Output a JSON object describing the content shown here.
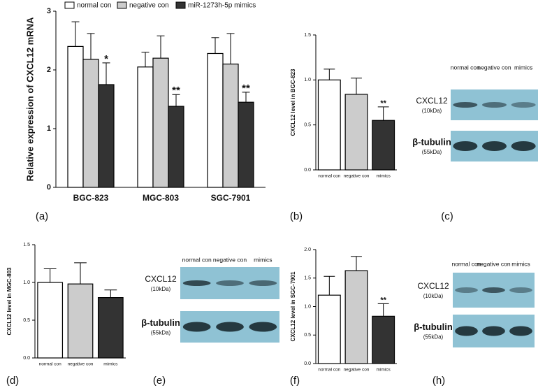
{
  "chart_data": [
    {
      "type": "grouped-bar",
      "panel": "(a)",
      "ylabel": "Relative expression of CXCL12 mRNA",
      "categories": [
        "BGC-823",
        "MGC-803",
        "SGC-7901"
      ],
      "series": [
        {
          "name": "normal con",
          "color": "#ffffff",
          "values": [
            2.4,
            2.05,
            2.28
          ],
          "errors": [
            0.42,
            0.25,
            0.27
          ]
        },
        {
          "name": "negative con",
          "color": "#cccccc",
          "values": [
            2.18,
            2.2,
            2.1
          ],
          "errors": [
            0.44,
            0.38,
            0.52
          ]
        },
        {
          "name": "miR-1273h-5p mimics",
          "color": "#333333",
          "values": [
            1.75,
            1.38,
            1.45
          ],
          "errors": [
            0.37,
            0.2,
            0.17
          ],
          "significance": [
            "*",
            "**",
            "**"
          ]
        }
      ],
      "ylim": [
        0,
        3
      ],
      "yticks": [
        0,
        1,
        2,
        3
      ]
    },
    {
      "type": "bar",
      "panel": "(b)",
      "ylabel": "CXCL12 level in BGC-823",
      "categories": [
        "normal con",
        "negative con",
        "mimics"
      ],
      "values": [
        1.0,
        0.84,
        0.55
      ],
      "errors": [
        0.12,
        0.18,
        0.15
      ],
      "colors": [
        "#ffffff",
        "#cccccc",
        "#333333"
      ],
      "significance": [
        null,
        null,
        "**"
      ],
      "ylim": [
        0,
        1.5
      ],
      "yticks": [
        {
          "value": 0,
          "label": "0.0"
        },
        0.5,
        {
          "value": 1,
          "label": "1.0"
        },
        1.5
      ]
    },
    {
      "type": "bar",
      "panel": "(d)",
      "ylabel": "CXCL12 level in MGC-803",
      "categories": [
        "normal con",
        "negative con",
        "mimics"
      ],
      "values": [
        1.0,
        0.98,
        0.8
      ],
      "errors": [
        0.18,
        0.28,
        0.1
      ],
      "colors": [
        "#ffffff",
        "#cccccc",
        "#333333"
      ],
      "ylim": [
        0,
        1.5
      ],
      "yticks": [
        {
          "value": 0,
          "label": "0.0"
        },
        0.5,
        {
          "value": 1,
          "label": "1.0"
        },
        1.5
      ]
    },
    {
      "type": "bar",
      "panel": "(f)",
      "ylabel": "CXCL12 level in SGC-7901",
      "categories": [
        "normal con",
        "negative con",
        "mimics"
      ],
      "values": [
        1.2,
        1.63,
        0.83
      ],
      "errors": [
        0.33,
        0.25,
        0.22
      ],
      "colors": [
        "#ffffff",
        "#cccccc",
        "#333333"
      ],
      "significance": [
        null,
        null,
        "**"
      ],
      "ylim": [
        0,
        2
      ],
      "yticks": [
        {
          "value": 0,
          "label": "0.0"
        },
        0.5,
        {
          "value": 1,
          "label": "1.0"
        },
        1.5,
        {
          "value": 2,
          "label": "2.0"
        }
      ]
    }
  ],
  "blots": [
    {
      "panel": "(c)",
      "lanes": [
        "normal con",
        "negative con",
        "mimics"
      ],
      "rows": [
        {
          "label": "CXCL12",
          "sublabel": "(10kDa)"
        },
        {
          "label": "β-tubulin",
          "sublabel": "(55kDa)"
        }
      ]
    },
    {
      "panel": "(e)",
      "lanes": [
        "normal con",
        "negative con",
        "mimics"
      ],
      "rows": [
        {
          "label": "CXCL12",
          "sublabel": "(10kDa)"
        },
        {
          "label": "β-tubulin",
          "sublabel": "(55kDa)"
        }
      ]
    },
    {
      "panel": "(h)",
      "lanes": [
        "normal con",
        "negative con",
        "mimics"
      ],
      "rows": [
        {
          "label": "CXCL12",
          "sublabel": "(10kDa)"
        },
        {
          "label": "β-tubulin",
          "sublabel": "(55kDa)"
        }
      ]
    }
  ]
}
